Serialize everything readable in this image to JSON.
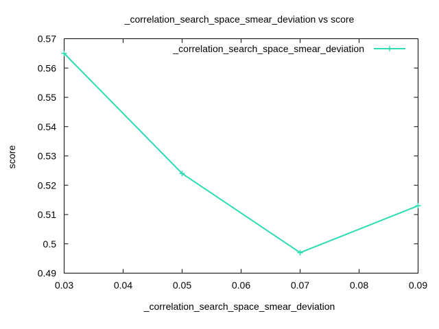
{
  "chart_data": {
    "type": "line",
    "title": "_correlation_search_space_smear_deviation vs score",
    "xlabel": "_correlation_search_space_smear_deviation",
    "ylabel": "score",
    "xlim": [
      0.03,
      0.09
    ],
    "ylim": [
      0.49,
      0.57
    ],
    "x_ticks": [
      "0.03",
      "0.04",
      "0.05",
      "0.06",
      "0.07",
      "0.08",
      "0.09"
    ],
    "y_ticks": [
      "0.49",
      "0.5",
      "0.51",
      "0.52",
      "0.53",
      "0.54",
      "0.55",
      "0.56",
      "0.57"
    ],
    "grid": false,
    "legend_position": "top-right",
    "series": [
      {
        "name": "_correlation_search_space_smear_deviation",
        "color": "#2bdbb3",
        "marker": "plus",
        "x": [
          0.03,
          0.05,
          0.07,
          0.09
        ],
        "y": [
          0.565,
          0.524,
          0.497,
          0.513
        ]
      }
    ]
  }
}
